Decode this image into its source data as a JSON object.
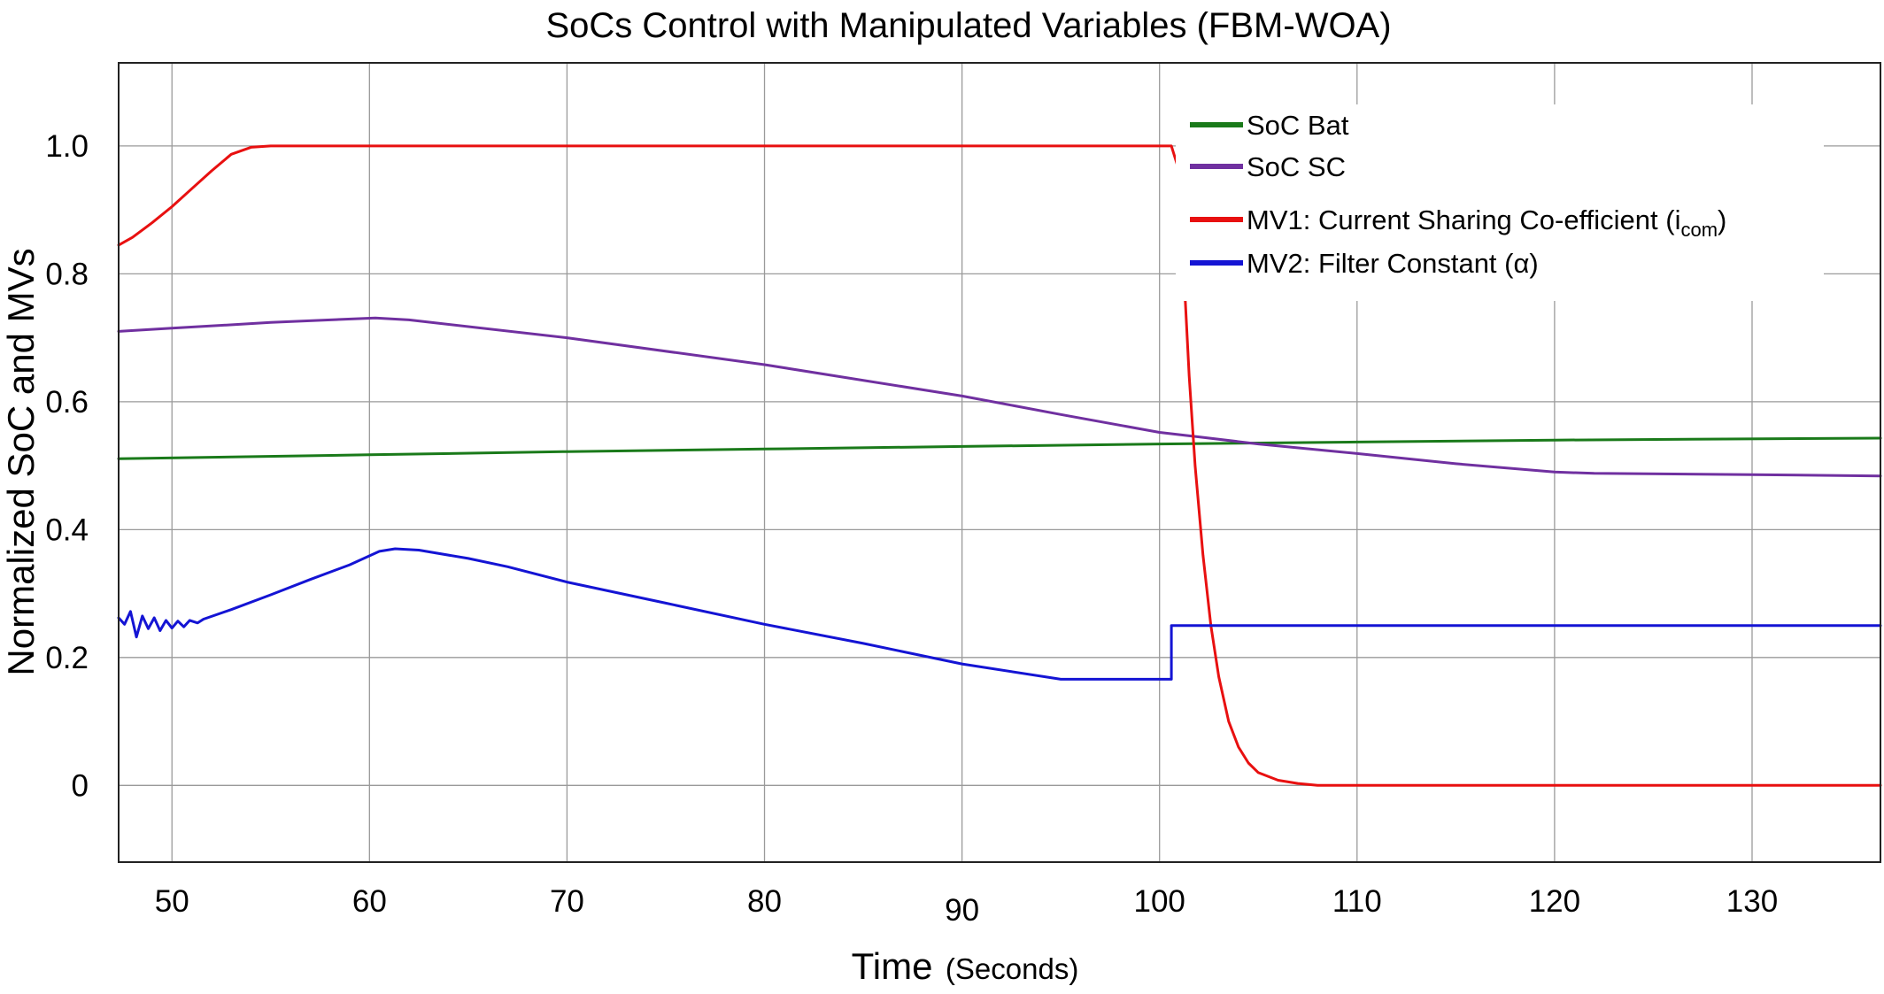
{
  "chart_data": {
    "type": "line",
    "title": "SoCs Control with Manipulated Variables (FBM-WOA)",
    "xlabel_main": "Time",
    "xlabel_unit": "(Seconds)",
    "ylabel": "Normalized SoC and MVs",
    "xlim": [
      47.3,
      136.5
    ],
    "ylim": [
      -0.12,
      1.13
    ],
    "x_ticks": [
      50,
      60,
      70,
      80,
      90,
      100,
      110,
      120,
      130
    ],
    "x_tick_labels": [
      "50",
      "60",
      "70",
      "80",
      "90",
      "100",
      "110",
      "120",
      "130"
    ],
    "y_ticks": [
      0,
      0.2,
      0.4,
      0.6,
      0.8,
      1.0
    ],
    "y_tick_labels": [
      "0",
      "0.2",
      "0.4",
      "0.6",
      "0.8",
      "1.0"
    ],
    "grid": true,
    "legend_position": "top-right",
    "series": [
      {
        "name": "SoC Bat",
        "color": "#1a7a1a",
        "points": [
          [
            47.3,
            0.511
          ],
          [
            60,
            0.517
          ],
          [
            70,
            0.522
          ],
          [
            80,
            0.526
          ],
          [
            90,
            0.53
          ],
          [
            100,
            0.534
          ],
          [
            110,
            0.537
          ],
          [
            120,
            0.54
          ],
          [
            136.5,
            0.543
          ]
        ]
      },
      {
        "name": "SoC SC",
        "color": "#7030a0",
        "points": [
          [
            47.3,
            0.71
          ],
          [
            50,
            0.715
          ],
          [
            55,
            0.724
          ],
          [
            60.3,
            0.731
          ],
          [
            62,
            0.728
          ],
          [
            70,
            0.7
          ],
          [
            80,
            0.658
          ],
          [
            90,
            0.609
          ],
          [
            95,
            0.58
          ],
          [
            100,
            0.552
          ],
          [
            102,
            0.545
          ],
          [
            105,
            0.534
          ],
          [
            110,
            0.519
          ],
          [
            115,
            0.503
          ],
          [
            120,
            0.49
          ],
          [
            122,
            0.488
          ],
          [
            130,
            0.486
          ],
          [
            136.5,
            0.484
          ]
        ]
      },
      {
        "name": "MV1: Current Sharing Co-efficient (icom)",
        "color": "#e81010",
        "points": [
          [
            47.3,
            0.845
          ],
          [
            48,
            0.857
          ],
          [
            49,
            0.88
          ],
          [
            50,
            0.905
          ],
          [
            51,
            0.933
          ],
          [
            52,
            0.961
          ],
          [
            53,
            0.987
          ],
          [
            54,
            0.998
          ],
          [
            55,
            1.0
          ],
          [
            60,
            1.0
          ],
          [
            80,
            1.0
          ],
          [
            100,
            1.0
          ],
          [
            100.6,
            1.0
          ],
          [
            100.9,
            0.97
          ],
          [
            101.2,
            0.82
          ],
          [
            101.5,
            0.64
          ],
          [
            101.8,
            0.5
          ],
          [
            102.2,
            0.36
          ],
          [
            102.6,
            0.25
          ],
          [
            103,
            0.17
          ],
          [
            103.5,
            0.1
          ],
          [
            104,
            0.06
          ],
          [
            104.5,
            0.035
          ],
          [
            105,
            0.02
          ],
          [
            106,
            0.008
          ],
          [
            107,
            0.003
          ],
          [
            108,
            0.0
          ],
          [
            136.5,
            0.0
          ]
        ]
      },
      {
        "name": "MV2: Filter Constant (α)",
        "color": "#1414d4",
        "points": [
          [
            47.3,
            0.262
          ],
          [
            47.6,
            0.252
          ],
          [
            47.9,
            0.272
          ],
          [
            48.2,
            0.232
          ],
          [
            48.5,
            0.265
          ],
          [
            48.8,
            0.245
          ],
          [
            49.1,
            0.262
          ],
          [
            49.4,
            0.242
          ],
          [
            49.7,
            0.258
          ],
          [
            50,
            0.246
          ],
          [
            50.3,
            0.257
          ],
          [
            50.6,
            0.248
          ],
          [
            50.9,
            0.258
          ],
          [
            51.3,
            0.254
          ],
          [
            51.6,
            0.26
          ],
          [
            53,
            0.275
          ],
          [
            55,
            0.298
          ],
          [
            57,
            0.322
          ],
          [
            59,
            0.345
          ],
          [
            60.5,
            0.366
          ],
          [
            61.3,
            0.37
          ],
          [
            62.5,
            0.368
          ],
          [
            65,
            0.355
          ],
          [
            67,
            0.342
          ],
          [
            70,
            0.318
          ],
          [
            75,
            0.285
          ],
          [
            80,
            0.252
          ],
          [
            85,
            0.222
          ],
          [
            90,
            0.19
          ],
          [
            95,
            0.166
          ],
          [
            100.6,
            0.166
          ],
          [
            100.6,
            0.25
          ],
          [
            136.5,
            0.25
          ]
        ]
      }
    ]
  },
  "legend": {
    "items": [
      {
        "label": "SoC Bat",
        "color": "#1a7a1a"
      },
      {
        "label": "SoC SC",
        "color": "#7030a0"
      },
      {
        "label_prefix": "MV1: Current Sharing Co-efficient (i",
        "label_sub": "com",
        "label_suffix": ")",
        "color": "#e81010"
      },
      {
        "label": "MV2: Filter Constant (α)",
        "color": "#1414d4"
      }
    ]
  }
}
